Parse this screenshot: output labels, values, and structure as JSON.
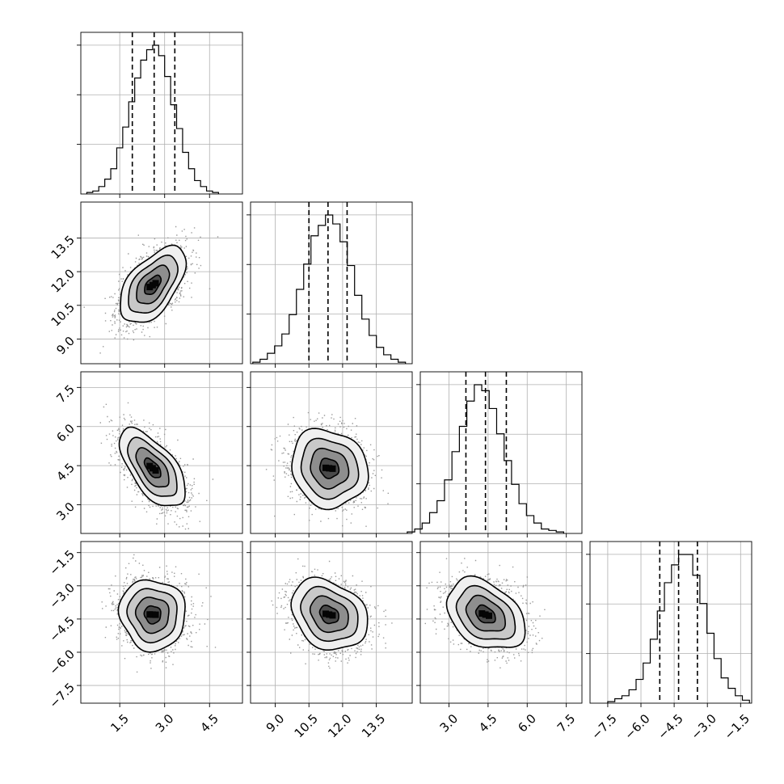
{
  "chart_data": {
    "type": "corner",
    "title": "",
    "n_parameters": 4,
    "grid": true,
    "colors": {
      "points": "#9a9a9a",
      "density": "#000000",
      "lines": "#000000",
      "grid": "#b0b0b0"
    },
    "parameters": [
      {
        "index": 0,
        "range": [
          0.2,
          5.6
        ],
        "ticks": [
          1.5,
          3.0,
          4.5
        ],
        "tick_labels": [
          "1.5",
          "3.0",
          "4.5"
        ],
        "mean": 2.6,
        "std": 0.55,
        "quantiles": [
          1.92,
          2.65,
          3.34
        ],
        "hist_counts": [
          0.01,
          0.02,
          0.05,
          0.1,
          0.17,
          0.31,
          0.45,
          0.62,
          0.78,
          0.9,
          0.97,
          1.0,
          0.93,
          0.79,
          0.6,
          0.44,
          0.28,
          0.17,
          0.09,
          0.05,
          0.02,
          0.01
        ]
      },
      {
        "index": 1,
        "range": [
          7.9,
          15.1
        ],
        "ticks": [
          9.0,
          10.5,
          12.0,
          13.5
        ],
        "tick_labels": [
          "9.0",
          "10.5",
          "12.0",
          "13.5"
        ],
        "mean": 11.4,
        "std": 0.85,
        "quantiles": [
          10.5,
          11.35,
          12.2
        ],
        "hist_counts": [
          0.01,
          0.03,
          0.07,
          0.12,
          0.2,
          0.33,
          0.5,
          0.67,
          0.86,
          0.93,
          1.0,
          0.94,
          0.82,
          0.66,
          0.46,
          0.3,
          0.19,
          0.11,
          0.06,
          0.03,
          0.01
        ]
      },
      {
        "index": 2,
        "range": [
          1.9,
          8.1
        ],
        "ticks": [
          3.0,
          4.5,
          6.0,
          7.5
        ],
        "tick_labels": [
          "3.0",
          "4.5",
          "6.0",
          "7.5"
        ],
        "mean": 4.4,
        "std": 0.75,
        "quantiles": [
          3.65,
          4.4,
          5.2
        ],
        "hist_counts": [
          0.01,
          0.03,
          0.07,
          0.14,
          0.22,
          0.36,
          0.55,
          0.72,
          0.89,
          1.0,
          0.96,
          0.84,
          0.67,
          0.49,
          0.33,
          0.2,
          0.12,
          0.07,
          0.03,
          0.02,
          0.01
        ]
      },
      {
        "index": 3,
        "range": [
          -8.3,
          -1.0
        ],
        "ticks": [
          -7.5,
          -6.0,
          -4.5,
          -3.0,
          -1.5
        ],
        "tick_labels": [
          "−7.5",
          "−6.0",
          "−4.5",
          "−3.0",
          "−1.5"
        ],
        "mean": -4.3,
        "std": 0.8,
        "quantiles": [
          -5.15,
          -4.3,
          -3.45
        ],
        "hist_counts": [
          0.01,
          0.03,
          0.05,
          0.09,
          0.16,
          0.27,
          0.43,
          0.62,
          0.81,
          0.93,
          1.0,
          1.0,
          0.86,
          0.67,
          0.47,
          0.3,
          0.17,
          0.1,
          0.05,
          0.02
        ]
      }
    ],
    "correlations": [
      {
        "x": 0,
        "y": 1,
        "rho": 0.55
      },
      {
        "x": 0,
        "y": 2,
        "rho": -0.62
      },
      {
        "x": 1,
        "y": 2,
        "rho": -0.12
      },
      {
        "x": 0,
        "y": 3,
        "rho": -0.05
      },
      {
        "x": 1,
        "y": 3,
        "rho": -0.25
      },
      {
        "x": 2,
        "y": 3,
        "rho": -0.35
      }
    ],
    "contour_levels_sigma": [
      0.5,
      1.0,
      1.5,
      2.0
    ]
  }
}
